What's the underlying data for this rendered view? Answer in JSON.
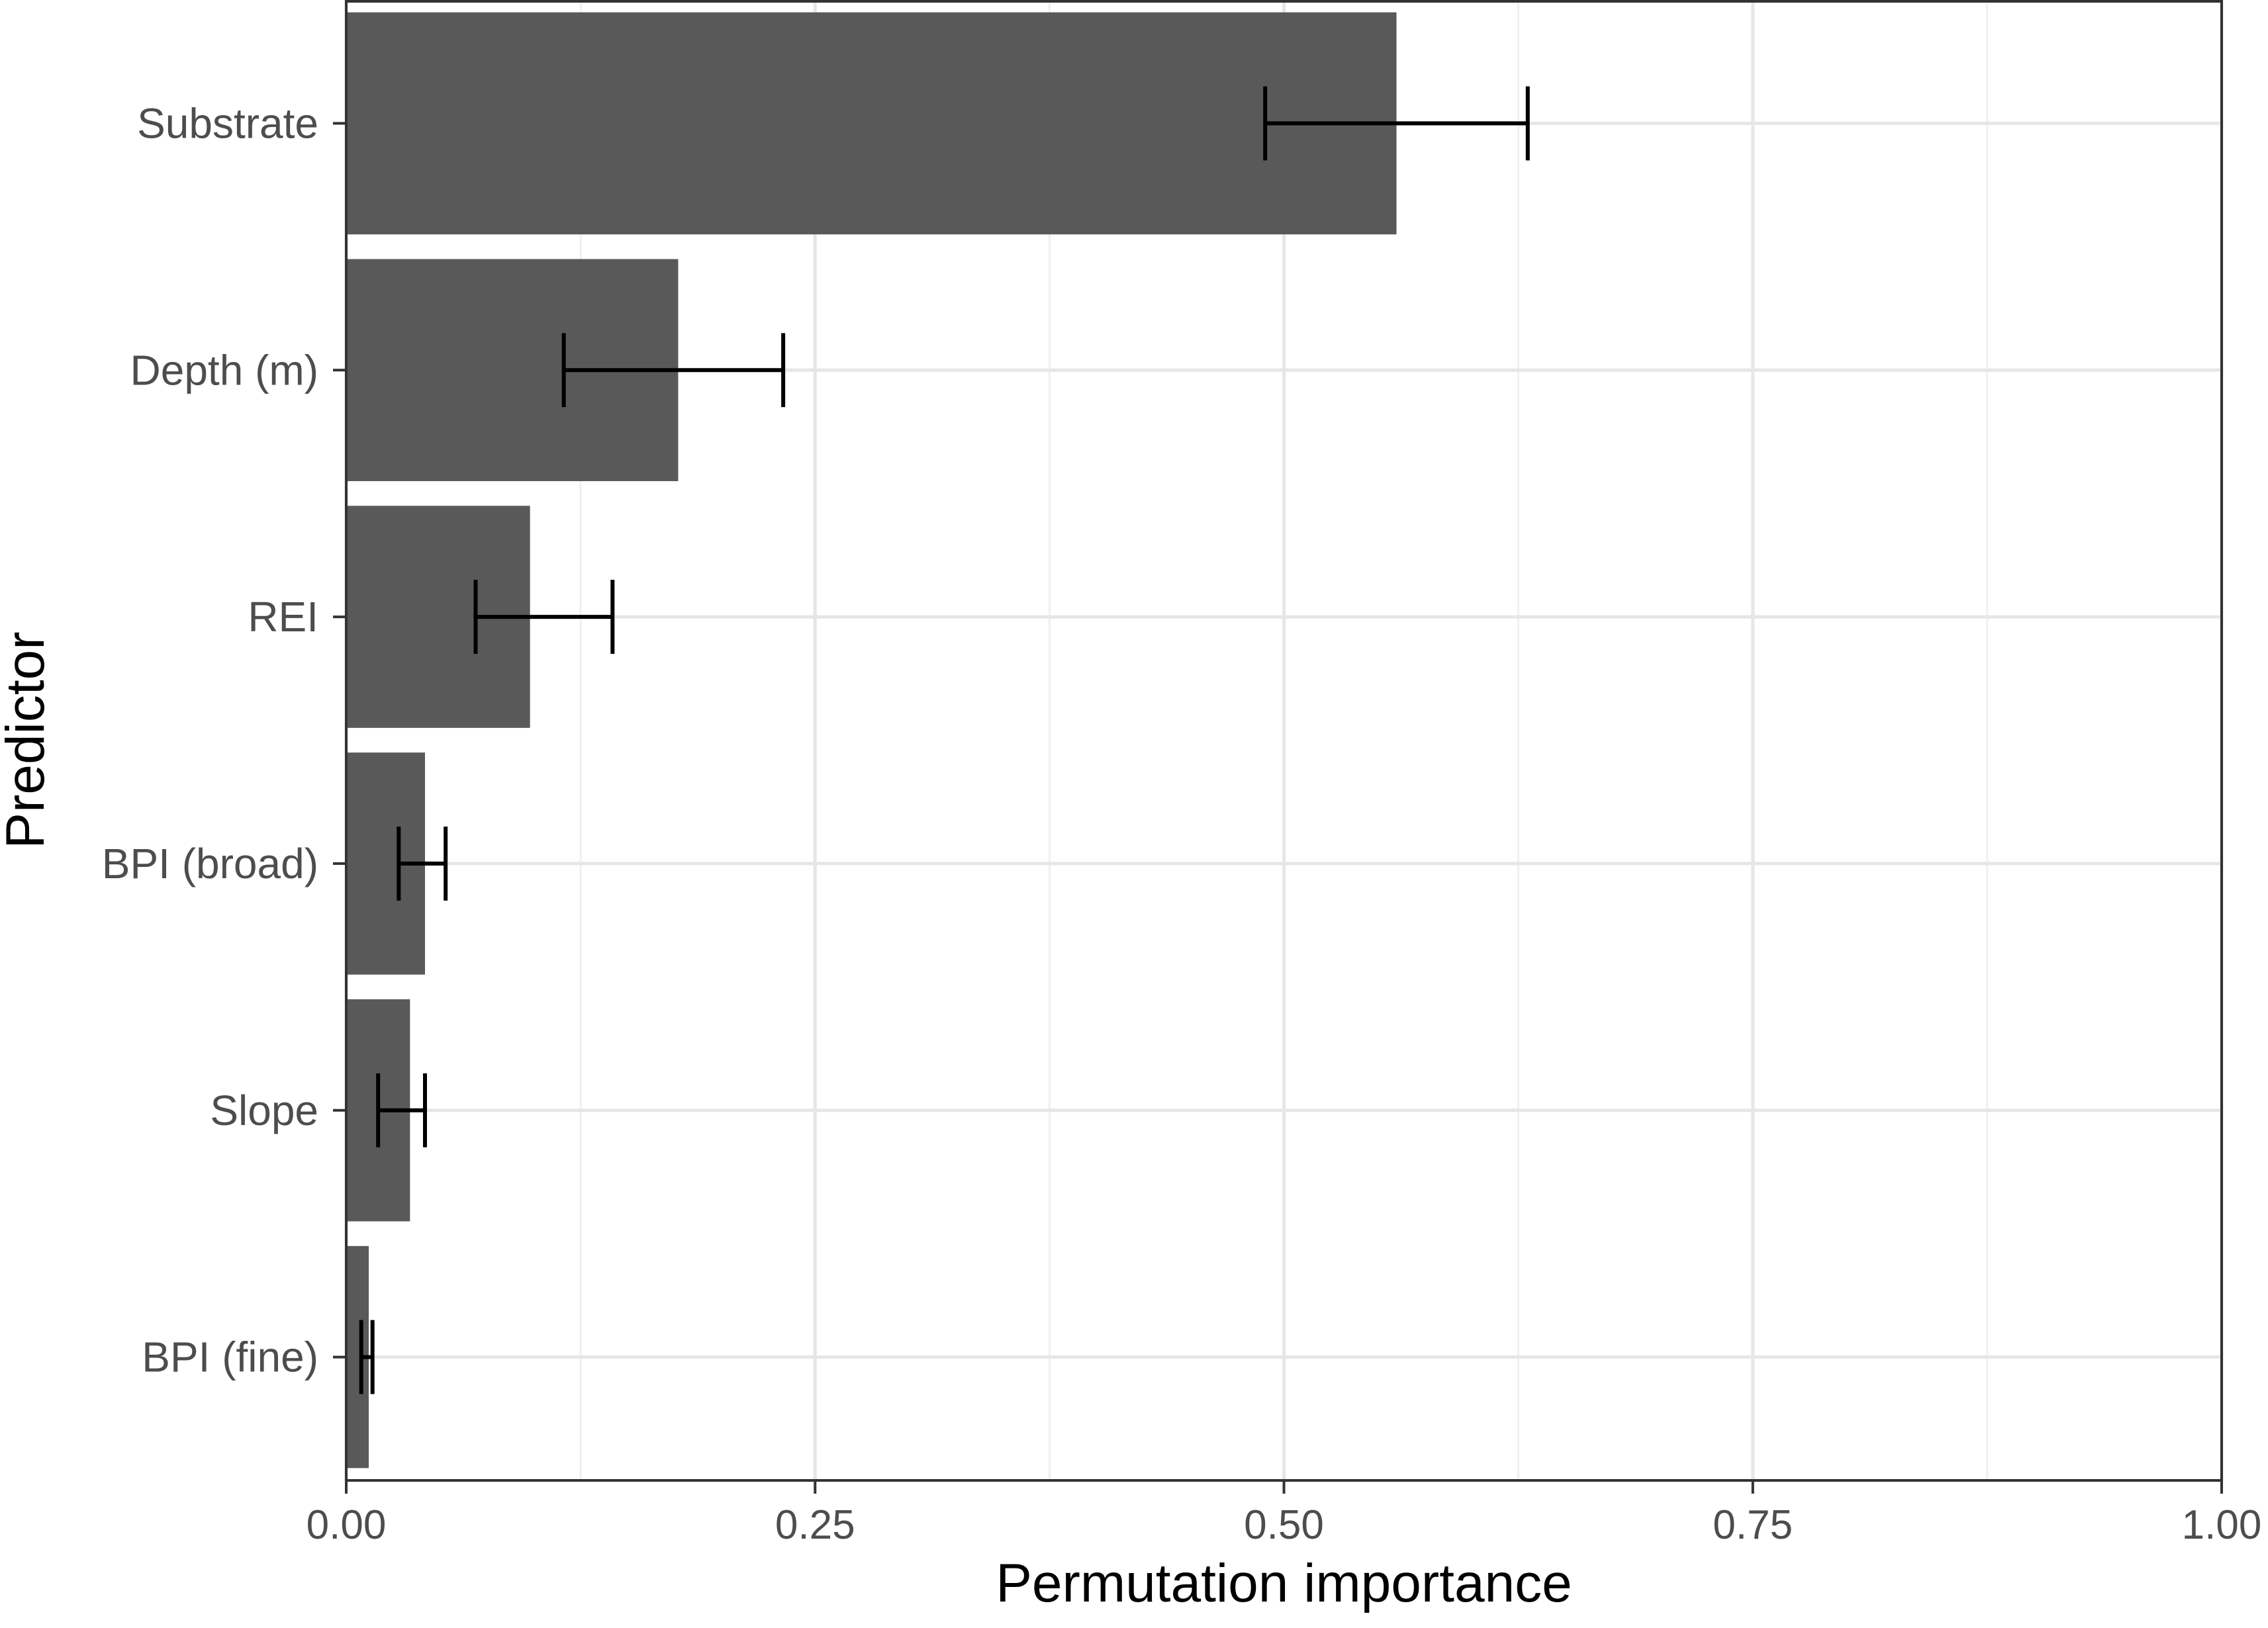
{
  "colors": {
    "bar": "#595959",
    "grid_major": "#e6e6e6",
    "grid_minor": "#f0f0f0",
    "panel_border": "#333333",
    "errorbar": "#000000",
    "tick_text": "#4d4d4d",
    "title_text": "#000000"
  },
  "chart_data": {
    "type": "bar",
    "orientation": "horizontal",
    "title": "",
    "xlabel": "Permutation importance",
    "ylabel": "Predictor",
    "xlim": [
      0,
      1
    ],
    "xticks": [
      0,
      0.25,
      0.5,
      0.75,
      1
    ],
    "xtick_labels": [
      "0.00",
      "0.25",
      "0.50",
      "0.75",
      "1.00"
    ],
    "grid": true,
    "legend": "none",
    "categories": [
      "Substrate",
      "Depth (m)",
      "REI",
      "BPI (broad)",
      "Slope",
      "BPI (fine)"
    ],
    "values": [
      0.56,
      0.177,
      0.098,
      0.042,
      0.034,
      0.012
    ],
    "error_low": [
      0.49,
      0.116,
      0.069,
      0.028,
      0.017,
      0.008
    ],
    "error_high": [
      0.63,
      0.233,
      0.142,
      0.053,
      0.042,
      0.014
    ]
  }
}
